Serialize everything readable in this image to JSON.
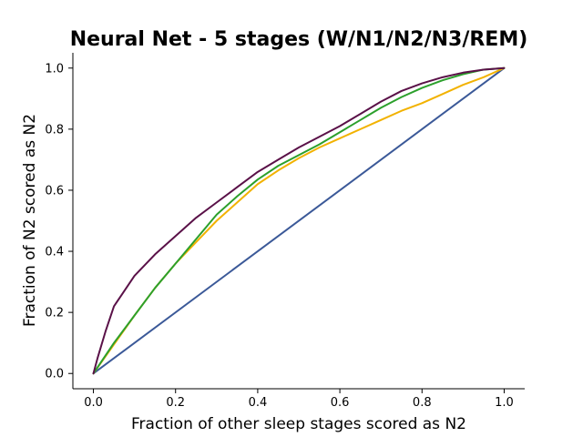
{
  "chart_data": {
    "type": "line",
    "title": "Neural Net - 5 stages (W/N1/N2/N3/REM)",
    "xlabel": "Fraction of other sleep stages scored as N2",
    "ylabel": "Fraction of N2 scored as N2",
    "xlim": [
      -0.05,
      1.05
    ],
    "ylim": [
      -0.05,
      1.05
    ],
    "xticks": [
      "0.0",
      "0.2",
      "0.4",
      "0.6",
      "0.8",
      "1.0"
    ],
    "yticks": [
      "0.0",
      "0.2",
      "0.4",
      "0.6",
      "0.8",
      "1.0"
    ],
    "grid": false,
    "series": [
      {
        "color": "#3b5998",
        "x": [
          0,
          1
        ],
        "y": [
          0,
          1
        ]
      },
      {
        "color": "#f2b200",
        "x": [
          0,
          0.05,
          0.1,
          0.15,
          0.2,
          0.25,
          0.3,
          0.35,
          0.4,
          0.45,
          0.5,
          0.55,
          0.6,
          0.65,
          0.7,
          0.75,
          0.8,
          0.85,
          0.9,
          0.95,
          1.0
        ],
        "y": [
          0,
          0.095,
          0.19,
          0.28,
          0.36,
          0.43,
          0.5,
          0.56,
          0.62,
          0.665,
          0.705,
          0.74,
          0.77,
          0.8,
          0.83,
          0.86,
          0.885,
          0.915,
          0.945,
          0.97,
          1.0
        ]
      },
      {
        "color": "#2ca02c",
        "x": [
          0,
          0.05,
          0.1,
          0.15,
          0.2,
          0.25,
          0.3,
          0.35,
          0.4,
          0.45,
          0.5,
          0.55,
          0.6,
          0.65,
          0.7,
          0.75,
          0.8,
          0.85,
          0.9,
          0.95,
          1.0
        ],
        "y": [
          0,
          0.1,
          0.19,
          0.28,
          0.36,
          0.44,
          0.52,
          0.58,
          0.635,
          0.68,
          0.715,
          0.75,
          0.79,
          0.83,
          0.87,
          0.905,
          0.935,
          0.96,
          0.98,
          0.995,
          1.0
        ]
      },
      {
        "color": "#5a1148",
        "x": [
          0,
          0.01,
          0.03,
          0.05,
          0.07,
          0.1,
          0.15,
          0.2,
          0.25,
          0.3,
          0.35,
          0.4,
          0.45,
          0.5,
          0.55,
          0.6,
          0.65,
          0.7,
          0.75,
          0.8,
          0.85,
          0.9,
          0.95,
          1.0
        ],
        "y": [
          0,
          0.05,
          0.14,
          0.22,
          0.26,
          0.32,
          0.39,
          0.45,
          0.51,
          0.56,
          0.61,
          0.66,
          0.7,
          0.74,
          0.775,
          0.81,
          0.85,
          0.89,
          0.925,
          0.95,
          0.97,
          0.985,
          0.995,
          1.0
        ]
      }
    ]
  }
}
